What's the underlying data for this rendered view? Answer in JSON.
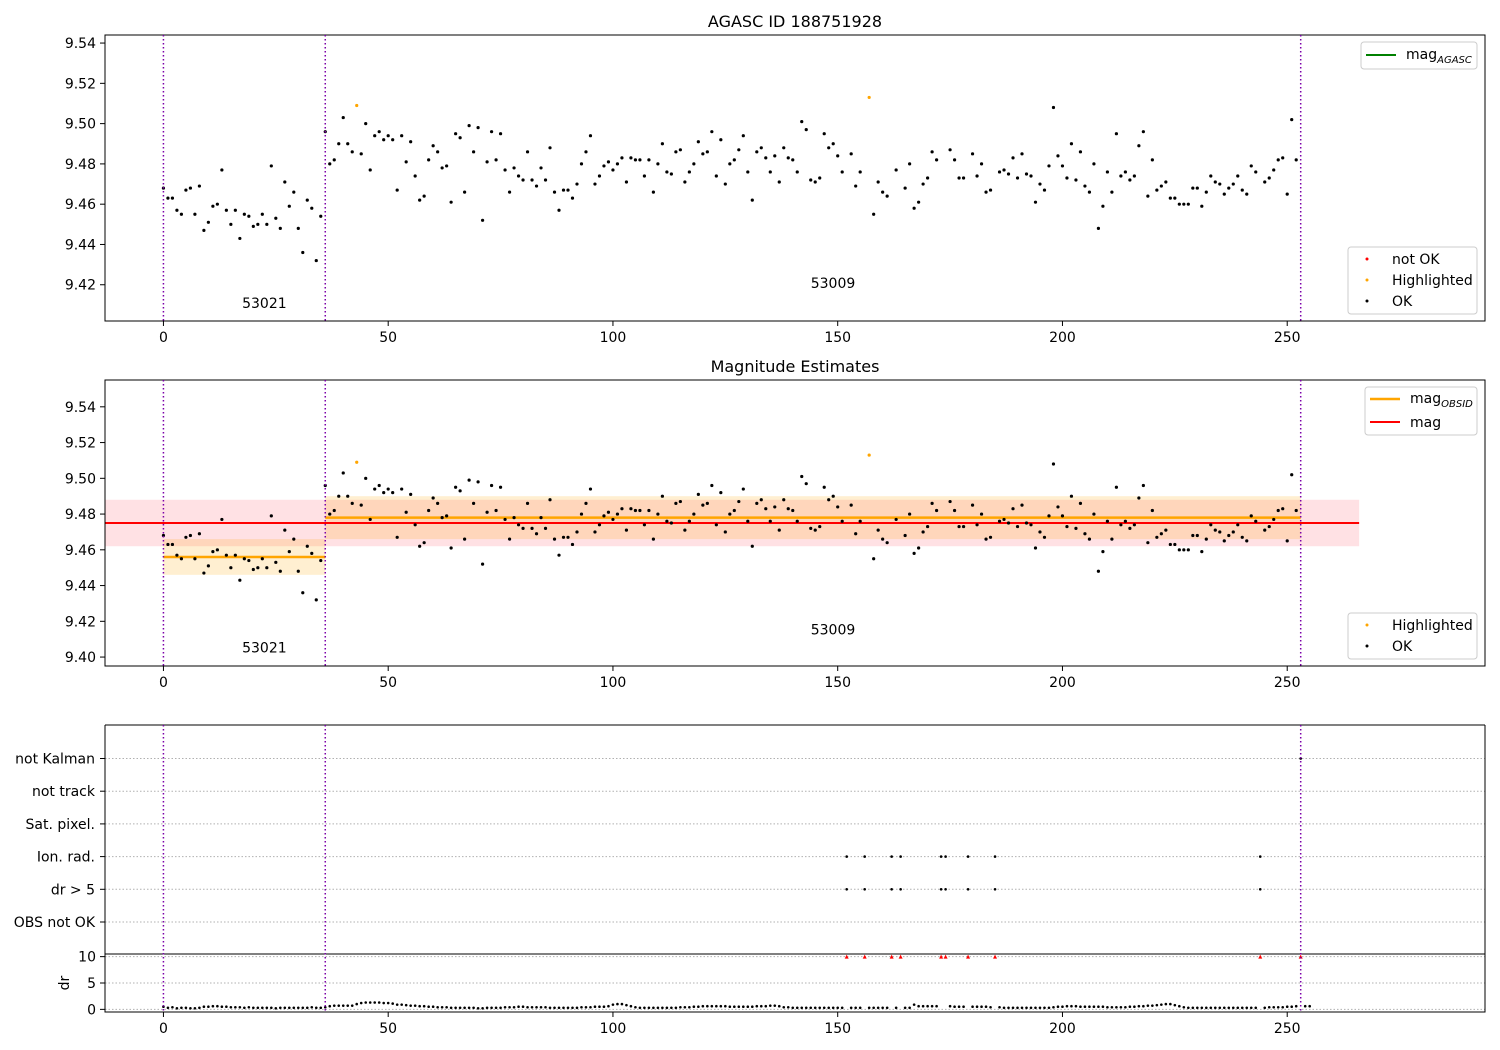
{
  "chart_data": [
    {
      "type": "scatter",
      "title": "AGASC ID 188751928",
      "xlim": [
        -13,
        294
      ],
      "ylim": [
        9.402,
        9.544
      ],
      "xticks": [
        0,
        50,
        100,
        150,
        200,
        250
      ],
      "yticks": [
        9.42,
        9.44,
        9.46,
        9.48,
        9.5,
        9.52,
        9.54
      ],
      "ytick_labels": [
        "9.42",
        "9.44",
        "9.46",
        "9.48",
        "9.50",
        "9.52",
        "9.54"
      ],
      "vlines": [
        0,
        36,
        253
      ],
      "vline_color": "#7b00a8",
      "obsid_labels": [
        {
          "text": "53021",
          "x": 17.5,
          "y": 9.4085
        },
        {
          "text": "53009",
          "x": 144,
          "y": 9.4185
        }
      ],
      "lines": [
        {
          "name": "mag$_{AGASC}$",
          "legend_text": "mag",
          "legend_sub": "AGASC",
          "color": "#008000",
          "visible": false
        }
      ],
      "series": [
        {
          "name": "not OK",
          "color": "#ff0000",
          "points": []
        },
        {
          "name": "Highlighted",
          "color": "#ffa500",
          "points": [
            [
              43,
              9.509
            ],
            [
              157,
              9.513
            ]
          ]
        },
        {
          "name": "OK",
          "color": "#000000",
          "points": "ok_points"
        }
      ],
      "legend_upper": "upper right",
      "legend_lower": "lower right"
    },
    {
      "type": "scatter",
      "title": "Magnitude Estimates",
      "xlim": [
        -13,
        294
      ],
      "ylim": [
        9.395,
        9.555
      ],
      "xticks": [
        0,
        50,
        100,
        150,
        200,
        250
      ],
      "yticks": [
        9.4,
        9.42,
        9.44,
        9.46,
        9.48,
        9.5,
        9.52,
        9.54
      ],
      "ytick_labels": [
        "9.40",
        "9.42",
        "9.44",
        "9.46",
        "9.48",
        "9.50",
        "9.52",
        "9.54"
      ],
      "vlines": [
        0,
        36,
        253
      ],
      "vline_color": "#7b00a8",
      "obsid_labels": [
        {
          "text": "53021",
          "x": 17.5,
          "y": 9.4025
        },
        {
          "text": "53009",
          "x": 144,
          "y": 9.4125
        }
      ],
      "mag": {
        "value": 9.475,
        "band": [
          9.462,
          9.488
        ],
        "x": [
          -13,
          266
        ],
        "color": "#ff0000",
        "band_color": "#ff9aa6"
      },
      "obsid_mags": [
        {
          "obsid": "53021",
          "x": [
            0,
            36
          ],
          "value": 9.456,
          "band": [
            9.446,
            9.466
          ]
        },
        {
          "obsid": "53009",
          "x": [
            36,
            253
          ],
          "value": 9.478,
          "band": [
            9.466,
            9.49
          ]
        }
      ],
      "obsid_color": "#ffa500",
      "lines": [
        {
          "name": "mag$_{OBSID}$",
          "legend_text": "mag",
          "legend_sub": "OBSID",
          "color": "#ffa500"
        },
        {
          "name": "mag",
          "legend_text": "mag",
          "legend_sub": "",
          "color": "#ff0000"
        }
      ],
      "series": [
        {
          "name": "Highlighted",
          "color": "#ffa500",
          "points": [
            [
              43,
              9.509
            ],
            [
              157,
              9.513
            ]
          ]
        },
        {
          "name": "OK",
          "color": "#000000",
          "points": "ok_points"
        }
      ],
      "legend_upper": "upper right",
      "legend_lower": "lower right"
    },
    {
      "type": "scatter",
      "title": "",
      "xlim": [
        -13,
        294
      ],
      "xticks": [
        0,
        50,
        100,
        150,
        200,
        250
      ],
      "flag_labels": [
        "OBS not OK",
        "dr > 5",
        "Ion. rad.",
        "Sat. pixel.",
        "not track",
        "not Kalman"
      ],
      "flags": {
        "Ion. rad.": [
          152,
          156,
          162,
          164,
          173,
          174,
          179,
          185,
          244
        ],
        "dr > 5": [
          152,
          156,
          162,
          164,
          173,
          174,
          179,
          185,
          244
        ],
        "not Kalman": [
          253
        ]
      },
      "vlines": [
        0,
        36,
        253
      ],
      "vline_color": "#7b00a8"
    },
    {
      "type": "scatter",
      "title": "",
      "xlim": [
        -13,
        294
      ],
      "ylim": [
        -0.5,
        10.5
      ],
      "ylabel": "dr",
      "yticks": [
        0,
        5,
        10
      ],
      "ytick_labels": [
        "0",
        "5",
        "10"
      ],
      "xticks": [
        0,
        50,
        100,
        150,
        200,
        250
      ],
      "xtick_labels": [
        "0",
        "50",
        "100",
        "150",
        "200",
        "250"
      ],
      "clipped_at": 10,
      "clipped_x": [
        152,
        156,
        162,
        164,
        173,
        174,
        179,
        185,
        244,
        253
      ],
      "clipped_color": "#ff0000",
      "vlines": [
        0,
        36,
        253
      ],
      "vline_color": "#7b00a8",
      "dr_points": "dr_values"
    }
  ],
  "ok_points": [
    [
      0,
      9.468
    ],
    [
      1,
      9.463
    ],
    [
      2,
      9.463
    ],
    [
      3,
      9.457
    ],
    [
      4,
      9.455
    ],
    [
      5,
      9.467
    ],
    [
      6,
      9.468
    ],
    [
      7,
      9.455
    ],
    [
      8,
      9.469
    ],
    [
      9,
      9.447
    ],
    [
      10,
      9.451
    ],
    [
      11,
      9.459
    ],
    [
      12,
      9.46
    ],
    [
      13,
      9.477
    ],
    [
      14,
      9.457
    ],
    [
      15,
      9.45
    ],
    [
      16,
      9.457
    ],
    [
      17,
      9.443
    ],
    [
      18,
      9.455
    ],
    [
      19,
      9.454
    ],
    [
      20,
      9.449
    ],
    [
      21,
      9.45
    ],
    [
      22,
      9.455
    ],
    [
      23,
      9.45
    ],
    [
      24,
      9.479
    ],
    [
      25,
      9.453
    ],
    [
      26,
      9.448
    ],
    [
      27,
      9.471
    ],
    [
      28,
      9.459
    ],
    [
      29,
      9.466
    ],
    [
      30,
      9.448
    ],
    [
      31,
      9.436
    ],
    [
      32,
      9.462
    ],
    [
      33,
      9.458
    ],
    [
      34,
      9.432
    ],
    [
      35,
      9.454
    ],
    [
      36,
      9.496
    ],
    [
      37,
      9.48
    ],
    [
      38,
      9.482
    ],
    [
      39,
      9.49
    ],
    [
      40,
      9.503
    ],
    [
      41,
      9.49
    ],
    [
      42,
      9.486
    ],
    [
      44,
      9.485
    ],
    [
      45,
      9.5
    ],
    [
      46,
      9.477
    ],
    [
      47,
      9.494
    ],
    [
      48,
      9.496
    ],
    [
      49,
      9.492
    ],
    [
      50,
      9.494
    ],
    [
      51,
      9.492
    ],
    [
      52,
      9.467
    ],
    [
      53,
      9.494
    ],
    [
      54,
      9.481
    ],
    [
      55,
      9.491
    ],
    [
      56,
      9.474
    ],
    [
      57,
      9.462
    ],
    [
      58,
      9.464
    ],
    [
      59,
      9.482
    ],
    [
      60,
      9.489
    ],
    [
      61,
      9.486
    ],
    [
      62,
      9.478
    ],
    [
      63,
      9.479
    ],
    [
      64,
      9.461
    ],
    [
      65,
      9.495
    ],
    [
      66,
      9.493
    ],
    [
      67,
      9.466
    ],
    [
      68,
      9.499
    ],
    [
      69,
      9.486
    ],
    [
      70,
      9.498
    ],
    [
      71,
      9.452
    ],
    [
      72,
      9.481
    ],
    [
      73,
      9.496
    ],
    [
      74,
      9.482
    ],
    [
      75,
      9.495
    ],
    [
      76,
      9.477
    ],
    [
      77,
      9.466
    ],
    [
      78,
      9.478
    ],
    [
      79,
      9.474
    ],
    [
      80,
      9.472
    ],
    [
      81,
      9.486
    ],
    [
      82,
      9.472
    ],
    [
      83,
      9.469
    ],
    [
      84,
      9.478
    ],
    [
      85,
      9.472
    ],
    [
      86,
      9.488
    ],
    [
      87,
      9.466
    ],
    [
      88,
      9.457
    ],
    [
      89,
      9.467
    ],
    [
      90,
      9.467
    ],
    [
      91,
      9.463
    ],
    [
      92,
      9.47
    ],
    [
      93,
      9.48
    ],
    [
      94,
      9.486
    ],
    [
      95,
      9.494
    ],
    [
      96,
      9.47
    ],
    [
      97,
      9.474
    ],
    [
      98,
      9.479
    ],
    [
      99,
      9.481
    ],
    [
      100,
      9.477
    ],
    [
      101,
      9.48
    ],
    [
      102,
      9.483
    ],
    [
      103,
      9.471
    ],
    [
      104,
      9.483
    ],
    [
      105,
      9.482
    ],
    [
      106,
      9.482
    ],
    [
      107,
      9.474
    ],
    [
      108,
      9.482
    ],
    [
      109,
      9.466
    ],
    [
      110,
      9.48
    ],
    [
      111,
      9.49
    ],
    [
      112,
      9.476
    ],
    [
      113,
      9.475
    ],
    [
      114,
      9.486
    ],
    [
      115,
      9.487
    ],
    [
      116,
      9.471
    ],
    [
      117,
      9.476
    ],
    [
      118,
      9.48
    ],
    [
      119,
      9.491
    ],
    [
      120,
      9.485
    ],
    [
      121,
      9.486
    ],
    [
      122,
      9.496
    ],
    [
      123,
      9.474
    ],
    [
      124,
      9.492
    ],
    [
      125,
      9.47
    ],
    [
      126,
      9.48
    ],
    [
      127,
      9.482
    ],
    [
      128,
      9.487
    ],
    [
      129,
      9.494
    ],
    [
      130,
      9.476
    ],
    [
      131,
      9.462
    ],
    [
      132,
      9.486
    ],
    [
      133,
      9.488
    ],
    [
      134,
      9.483
    ],
    [
      135,
      9.476
    ],
    [
      136,
      9.484
    ],
    [
      137,
      9.471
    ],
    [
      138,
      9.488
    ],
    [
      139,
      9.483
    ],
    [
      140,
      9.482
    ],
    [
      141,
      9.476
    ],
    [
      142,
      9.501
    ],
    [
      143,
      9.497
    ],
    [
      144,
      9.472
    ],
    [
      145,
      9.471
    ],
    [
      146,
      9.473
    ],
    [
      147,
      9.495
    ],
    [
      148,
      9.488
    ],
    [
      149,
      9.49
    ],
    [
      150,
      9.484
    ],
    [
      151,
      9.476
    ],
    [
      153,
      9.485
    ],
    [
      154,
      9.469
    ],
    [
      155,
      9.476
    ],
    [
      158,
      9.455
    ],
    [
      159,
      9.471
    ],
    [
      160,
      9.466
    ],
    [
      161,
      9.464
    ],
    [
      163,
      9.477
    ],
    [
      165,
      9.468
    ],
    [
      166,
      9.48
    ],
    [
      167,
      9.458
    ],
    [
      168,
      9.461
    ],
    [
      169,
      9.47
    ],
    [
      170,
      9.473
    ],
    [
      171,
      9.486
    ],
    [
      172,
      9.482
    ],
    [
      175,
      9.487
    ],
    [
      176,
      9.482
    ],
    [
      177,
      9.473
    ],
    [
      178,
      9.473
    ],
    [
      180,
      9.485
    ],
    [
      181,
      9.474
    ],
    [
      182,
      9.48
    ],
    [
      183,
      9.466
    ],
    [
      184,
      9.467
    ],
    [
      186,
      9.476
    ],
    [
      187,
      9.477
    ],
    [
      188,
      9.475
    ],
    [
      189,
      9.483
    ],
    [
      190,
      9.473
    ],
    [
      191,
      9.485
    ],
    [
      192,
      9.475
    ],
    [
      193,
      9.474
    ],
    [
      194,
      9.461
    ],
    [
      195,
      9.47
    ],
    [
      196,
      9.467
    ],
    [
      197,
      9.479
    ],
    [
      198,
      9.508
    ],
    [
      199,
      9.484
    ],
    [
      200,
      9.479
    ],
    [
      201,
      9.473
    ],
    [
      202,
      9.49
    ],
    [
      203,
      9.472
    ],
    [
      204,
      9.486
    ],
    [
      205,
      9.469
    ],
    [
      206,
      9.466
    ],
    [
      207,
      9.48
    ],
    [
      208,
      9.448
    ],
    [
      209,
      9.459
    ],
    [
      210,
      9.476
    ],
    [
      211,
      9.466
    ],
    [
      212,
      9.495
    ],
    [
      213,
      9.474
    ],
    [
      214,
      9.476
    ],
    [
      215,
      9.472
    ],
    [
      216,
      9.474
    ],
    [
      217,
      9.489
    ],
    [
      218,
      9.496
    ],
    [
      219,
      9.464
    ],
    [
      220,
      9.482
    ],
    [
      221,
      9.467
    ],
    [
      222,
      9.469
    ],
    [
      223,
      9.471
    ],
    [
      224,
      9.463
    ],
    [
      225,
      9.463
    ],
    [
      226,
      9.46
    ],
    [
      227,
      9.46
    ],
    [
      228,
      9.46
    ],
    [
      229,
      9.468
    ],
    [
      230,
      9.468
    ],
    [
      231,
      9.459
    ],
    [
      232,
      9.466
    ],
    [
      233,
      9.474
    ],
    [
      234,
      9.471
    ],
    [
      235,
      9.47
    ],
    [
      236,
      9.465
    ],
    [
      237,
      9.468
    ],
    [
      238,
      9.47
    ],
    [
      239,
      9.474
    ],
    [
      240,
      9.467
    ],
    [
      241,
      9.465
    ],
    [
      242,
      9.479
    ],
    [
      243,
      9.476
    ],
    [
      245,
      9.471
    ],
    [
      246,
      9.473
    ],
    [
      247,
      9.477
    ],
    [
      248,
      9.482
    ],
    [
      249,
      9.483
    ],
    [
      250,
      9.465
    ],
    [
      251,
      9.502
    ],
    [
      252,
      9.482
    ]
  ],
  "dr_values": [
    0.5,
    0.3,
    0.4,
    0.2,
    0.3,
    0.3,
    0.2,
    0.2,
    0.3,
    0.5,
    0.5,
    0.6,
    0.6,
    0.5,
    0.5,
    0.4,
    0.4,
    0.4,
    0.3,
    0.4,
    0.3,
    0.3,
    0.3,
    0.3,
    0.3,
    0.2,
    0.3,
    0.3,
    0.3,
    0.3,
    0.3,
    0.3,
    0.3,
    0.4,
    0.3,
    0.3,
    0.4,
    0.6,
    0.7,
    0.7,
    0.7,
    0.7,
    0.7,
    1.0,
    1.2,
    1.3,
    1.3,
    1.3,
    1.3,
    1.2,
    1.2,
    1.1,
    0.9,
    0.9,
    0.8,
    0.7,
    0.7,
    0.6,
    0.6,
    0.5,
    0.5,
    0.4,
    0.4,
    0.4,
    0.3,
    0.3,
    0.3,
    0.3,
    0.3,
    0.3,
    0.2,
    0.2,
    0.3,
    0.3,
    0.3,
    0.3,
    0.4,
    0.4,
    0.4,
    0.5,
    0.5,
    0.4,
    0.4,
    0.4,
    0.4,
    0.4,
    0.3,
    0.3,
    0.3,
    0.3,
    0.3,
    0.3,
    0.3,
    0.4,
    0.4,
    0.4,
    0.5,
    0.5,
    0.5,
    0.6,
    0.9,
    1.0,
    1.0,
    0.8,
    0.6,
    0.4,
    0.3,
    0.3,
    0.3,
    0.3,
    0.3,
    0.3,
    0.3,
    0.3,
    0.3,
    0.4,
    0.4,
    0.4,
    0.5,
    0.5,
    0.6,
    0.6,
    0.6,
    0.6,
    0.6,
    0.6,
    0.5,
    0.5,
    0.5,
    0.5,
    0.5,
    0.5,
    0.6,
    0.6,
    0.6,
    0.7,
    0.7,
    0.6,
    0.4,
    0.4,
    0.3,
    0.3,
    0.3,
    0.3,
    0.3,
    0.3,
    0.3,
    0.3,
    0.3,
    0.3,
    0.3,
    0.3,
    0.3,
    0.3,
    0.3,
    0.3,
    0.3,
    0.3,
    0.3,
    0.3,
    0.3,
    0.3,
    0.3,
    0.3,
    0.3,
    0.3,
    0.3,
    0.9,
    0.6,
    0.6,
    0.6,
    0.6,
    0.6,
    0.6,
    0.6,
    0.6,
    0.5,
    0.5,
    0.5,
    0.5,
    0.5,
    0.5,
    0.5,
    0.5,
    0.4,
    0.4,
    0.4,
    0.3,
    0.3,
    0.3,
    0.3,
    0.3,
    0.3,
    0.3,
    0.3,
    0.3,
    0.3,
    0.3,
    0.4,
    0.5,
    0.5,
    0.6,
    0.6,
    0.6,
    0.5,
    0.5,
    0.5,
    0.5,
    0.5,
    0.5,
    0.4,
    0.4,
    0.4,
    0.4,
    0.4,
    0.5,
    0.5,
    0.6,
    0.6,
    0.7,
    0.7,
    0.8,
    0.9,
    1.0,
    1.0,
    0.8,
    0.6,
    0.4,
    0.3,
    0.3,
    0.3,
    0.3,
    0.3,
    0.3,
    0.3,
    0.3,
    0.3,
    0.3,
    0.3,
    0.3,
    0.3,
    0.3,
    0.3,
    0.3,
    0.3,
    0.3,
    0.4,
    0.4,
    0.4,
    0.4,
    0.5,
    0.5,
    0.6,
    0.6,
    0.6,
    0.6
  ]
}
